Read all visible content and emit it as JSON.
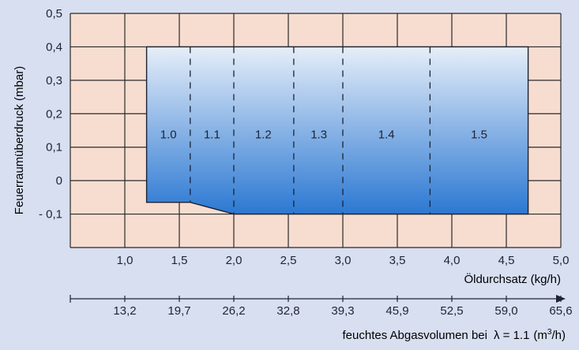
{
  "chart_data": {
    "type": "area",
    "title": "",
    "ylabel": "Feuerraumüberdruck (mbar)",
    "xlabel": "Öldurchsatz (kg/h)",
    "x2label_prefix": "feuchtes Abgasvolumen bei",
    "x2label_lambda": "λ = 1.1",
    "x2label_unit": "(m",
    "x2label_exp": "3",
    "x2label_close": "/h)",
    "xlim": [
      0.5,
      5.0
    ],
    "ylim": [
      -0.2,
      0.5
    ],
    "y_ticks": [
      {
        "value": 0.5,
        "label": "0,5"
      },
      {
        "value": 0.4,
        "label": "0,4"
      },
      {
        "value": 0.3,
        "label": "0,3"
      },
      {
        "value": 0.2,
        "label": "0,2"
      },
      {
        "value": 0.1,
        "label": "0,1"
      },
      {
        "value": 0.0,
        "label": "0"
      },
      {
        "value": -0.1,
        "label": "- 0,1"
      }
    ],
    "x_ticks": [
      {
        "value": 1.0,
        "label": "1,0"
      },
      {
        "value": 1.5,
        "label": "1,5"
      },
      {
        "value": 2.0,
        "label": "2,0"
      },
      {
        "value": 2.5,
        "label": "2,5"
      },
      {
        "value": 3.0,
        "label": "3,0"
      },
      {
        "value": 3.5,
        "label": "3,5"
      },
      {
        "value": 4.0,
        "label": "4,0"
      },
      {
        "value": 4.5,
        "label": "4,5"
      },
      {
        "value": 5.0,
        "label": "5,0"
      }
    ],
    "x2_ticks": [
      {
        "value": 1.0,
        "label": "13,2"
      },
      {
        "value": 1.5,
        "label": "19,7"
      },
      {
        "value": 2.0,
        "label": "26,2"
      },
      {
        "value": 2.5,
        "label": "32,8"
      },
      {
        "value": 3.0,
        "label": "39,3"
      },
      {
        "value": 3.5,
        "label": "45,9"
      },
      {
        "value": 4.0,
        "label": "52,5"
      },
      {
        "value": 4.5,
        "label": "59,0"
      },
      {
        "value": 5.0,
        "label": "65,6"
      }
    ],
    "region": [
      [
        1.2,
        0.4
      ],
      [
        4.7,
        0.4
      ],
      [
        4.7,
        -0.1
      ],
      [
        2.0,
        -0.1
      ],
      [
        1.6,
        -0.065
      ],
      [
        1.2,
        -0.065
      ]
    ],
    "dividers": [
      1.6,
      2.0,
      2.55,
      3.0,
      3.8
    ],
    "zones": [
      {
        "label": "1.0",
        "x": 1.4
      },
      {
        "label": "1.1",
        "x": 1.8
      },
      {
        "label": "1.2",
        "x": 2.27
      },
      {
        "label": "1.3",
        "x": 2.78
      },
      {
        "label": "1.4",
        "x": 3.4
      },
      {
        "label": "1.5",
        "x": 4.25
      }
    ],
    "zone_label_y": 0.14,
    "grid": true,
    "colors": {
      "background": "#d7dff1",
      "plot_fill": "#f7ddd0",
      "grid": "#2a2a2a",
      "region_top": "#e6eef9",
      "region_bottom": "#2b78d2",
      "text": "#1f2430"
    }
  }
}
